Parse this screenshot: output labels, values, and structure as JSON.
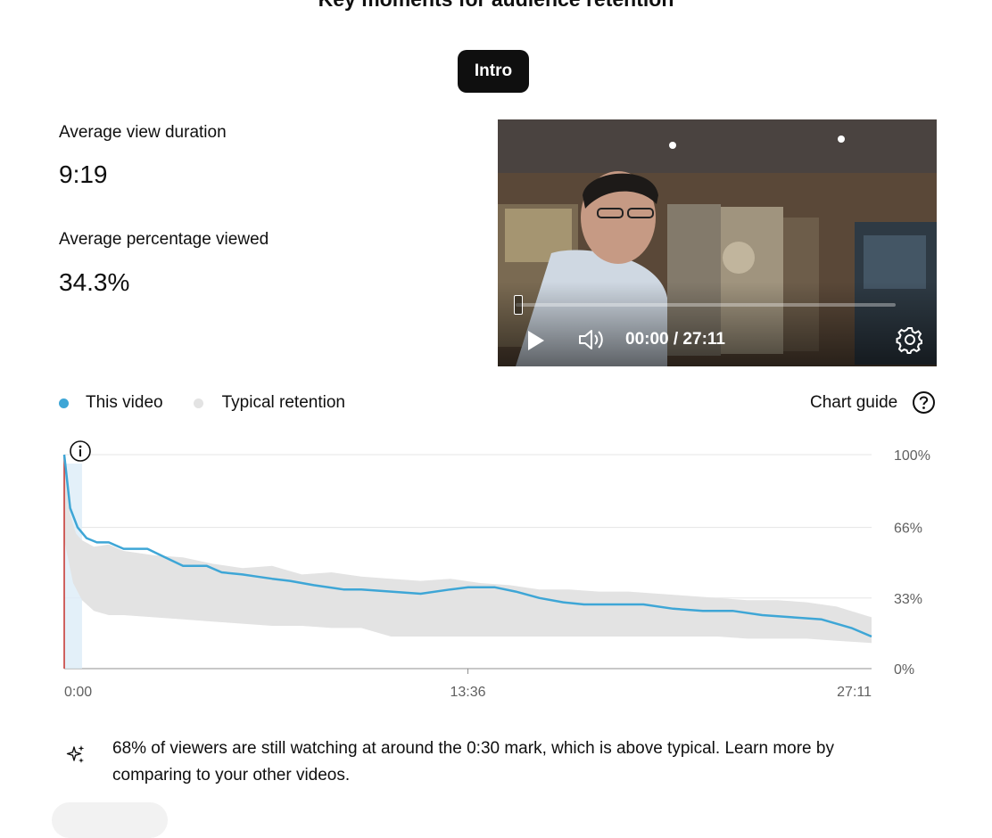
{
  "header": {
    "title": "Key moments for audience retention"
  },
  "segment_chip": {
    "label": "Intro"
  },
  "metrics": {
    "avg_view_duration_label": "Average view duration",
    "avg_view_duration_value": "9:19",
    "avg_pct_viewed_label": "Average percentage viewed",
    "avg_pct_viewed_value": "34.3%"
  },
  "player": {
    "time": "00:00 / 27:11",
    "progress_fraction": 0.0,
    "icons": [
      "play-icon",
      "volume-icon",
      "gear-icon"
    ]
  },
  "legend": {
    "this_video": "This video",
    "typical": "Typical retention",
    "this_video_color": "#3ea6d6",
    "typical_color": "#e3e3e3"
  },
  "chart_guide": {
    "label": "Chart guide",
    "icon": "help-circle-icon"
  },
  "chart_data": {
    "type": "area",
    "title": "",
    "xlabel": "",
    "ylabel": "",
    "x_ticks": [
      "0:00",
      "13:36",
      "27:11"
    ],
    "y_ticks": [
      "100%",
      "66%",
      "33%",
      "0%"
    ],
    "xlim": [
      0,
      27.18
    ],
    "ylim": [
      0,
      100
    ],
    "x_unit": "minutes",
    "highlight_range_minutes": [
      0,
      0.6
    ],
    "series": [
      {
        "name": "This video",
        "color": "#3ea6d6",
        "x": [
          0,
          0.2,
          0.45,
          0.75,
          1.1,
          1.5,
          2.0,
          2.8,
          3.4,
          4.0,
          4.8,
          5.3,
          6.0,
          6.5,
          7.0,
          7.6,
          8.4,
          9.4,
          10.0,
          11.0,
          12.0,
          13.0,
          13.6,
          14.5,
          15.2,
          16.0,
          16.8,
          17.5,
          18.5,
          19.5,
          20.5,
          21.5,
          22.5,
          23.5,
          24.5,
          25.5,
          26.5,
          27.18
        ],
        "y": [
          100,
          75,
          66,
          61,
          59,
          59,
          56,
          56,
          52,
          48,
          48,
          45,
          44,
          43,
          42,
          41,
          39,
          37,
          37,
          36,
          35,
          37,
          38,
          38,
          36,
          33,
          31,
          30,
          30,
          30,
          28,
          27,
          27,
          25,
          24,
          23,
          19,
          15
        ]
      },
      {
        "name": "Typical retention",
        "color": "#e3e3e3",
        "x_upper": [
          0,
          0.2,
          0.4,
          0.6,
          1.0,
          1.5,
          2.0,
          3.0,
          4.0,
          5.0,
          6.0,
          7.0,
          8.0,
          9.0,
          10.0,
          11.0,
          12.0,
          13.0,
          14.0,
          15.0,
          16.0,
          17.0,
          18.0,
          19.0,
          20.0,
          21.0,
          22.0,
          23.0,
          24.0,
          25.0,
          26.0,
          27.18
        ],
        "upper": [
          97,
          72,
          63,
          60,
          57,
          58,
          55,
          53,
          52,
          49,
          47,
          48,
          44,
          45,
          43,
          42,
          41,
          42,
          40,
          39,
          37,
          37,
          36,
          36,
          35,
          34,
          33,
          32,
          32,
          31,
          29,
          24
        ],
        "x_lower": [
          0,
          0.3,
          0.6,
          1.0,
          1.5,
          2.0,
          3.0,
          4.0,
          5.0,
          6.0,
          7.0,
          8.0,
          9.0,
          10.0,
          11.0,
          12.0,
          13.0,
          14.0,
          15.0,
          16.0,
          17.0,
          18.0,
          19.0,
          20.0,
          21.0,
          22.0,
          23.0,
          24.0,
          25.0,
          26.0,
          27.18
        ],
        "lower": [
          60,
          40,
          32,
          27,
          25,
          25,
          24,
          23,
          22,
          21,
          20,
          20,
          19,
          19,
          15,
          15,
          15,
          15,
          15,
          15,
          15,
          15,
          15,
          15,
          15,
          15,
          14,
          14,
          14,
          13,
          12
        ]
      }
    ]
  },
  "insight": {
    "icon": "sparkle-icon",
    "text": "68% of viewers are still watching at around the 0:30 mark, which is above typical. Learn more by comparing to your other videos."
  }
}
